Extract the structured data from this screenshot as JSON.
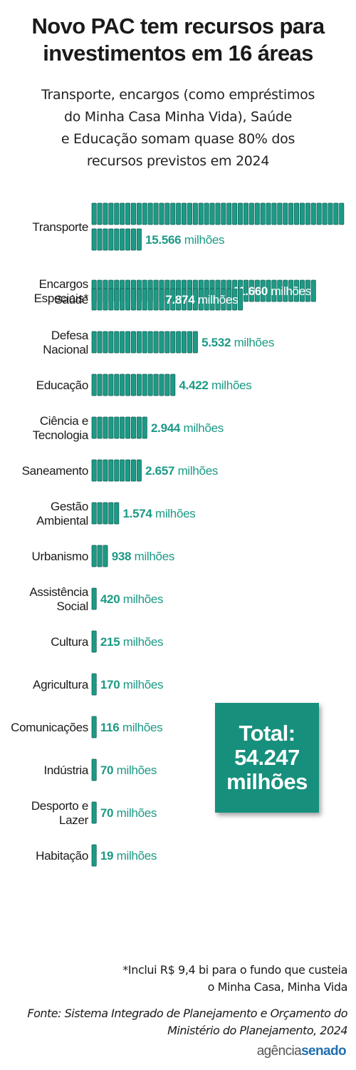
{
  "header": {
    "title_lines": [
      "Novo PAC tem recursos para",
      "investimentos em 16 áreas"
    ],
    "subtitle_lines": [
      "Transporte, encargos (como empréstimos",
      "do Minha Casa Minha Vida), Saúde",
      "e Educação somam quase 80% dos",
      "recursos previstos em 2024"
    ]
  },
  "chart_data": {
    "type": "bar",
    "orientation": "horizontal",
    "unit": "milhões",
    "categories": [
      [
        "Transporte"
      ],
      [
        "Encargos",
        "Especiais*"
      ],
      [
        "Saúde"
      ],
      [
        "Defesa",
        "Nacional"
      ],
      [
        "Educação"
      ],
      [
        "Ciência e",
        "Tecnologia"
      ],
      [
        "Saneamento"
      ],
      [
        "Gestão",
        "Ambiental"
      ],
      [
        "Urbanismo"
      ],
      [
        "Assistência",
        "Social"
      ],
      [
        "Cultura"
      ],
      [
        "Agricultura"
      ],
      [
        "Comunicações"
      ],
      [
        "Indústria"
      ],
      [
        "Desporto e",
        "Lazer"
      ],
      [
        "Habitação"
      ]
    ],
    "values": [
      15566,
      11660,
      7874,
      5532,
      4422,
      2944,
      2657,
      1574,
      938,
      420,
      215,
      170,
      116,
      70,
      70,
      19
    ],
    "value_labels": [
      "15.566",
      "11.660",
      "7.874",
      "5.532",
      "4.422",
      "2.944",
      "2.657",
      "1.574",
      "938",
      "420",
      "215",
      "170",
      "116",
      "70",
      "70",
      "19"
    ],
    "value_suffix": "milhões",
    "grid": false,
    "legend": "none",
    "bar_color": "#1c9a86",
    "label_color": "#1c9a86"
  },
  "total": {
    "lines": [
      "Total:",
      "54.247",
      "milhões"
    ],
    "color": "#16907d"
  },
  "footer": {
    "footnote_lines": [
      "*Inclui R$ 9,4 bi para o fundo que custeia",
      "o Minha Casa, Minha Vida"
    ],
    "source_lines": [
      "Fonte: Sistema Integrado de Planejamento e Orçamento do",
      "Ministério do Planejamento, 2024"
    ],
    "logo_part1": "agência",
    "logo_part2": "senado"
  }
}
